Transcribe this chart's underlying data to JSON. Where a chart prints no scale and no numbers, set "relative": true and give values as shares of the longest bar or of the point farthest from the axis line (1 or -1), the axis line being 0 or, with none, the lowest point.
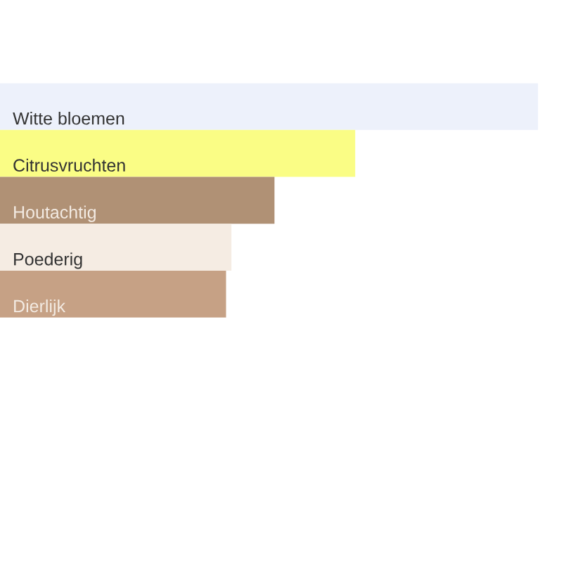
{
  "chart_data": {
    "type": "bar",
    "orientation": "horizontal",
    "relative": true,
    "categories": [
      "Witte bloemen",
      "Citrusvruchten",
      "Houtachtig",
      "Poederig",
      "Dierlijk"
    ],
    "values": [
      1,
      0.66,
      0.51,
      0.43,
      0.42
    ],
    "colors": [
      "#edf1fb",
      "#fafd85",
      "#b09175",
      "#f5ece3",
      "#c6a185"
    ]
  }
}
